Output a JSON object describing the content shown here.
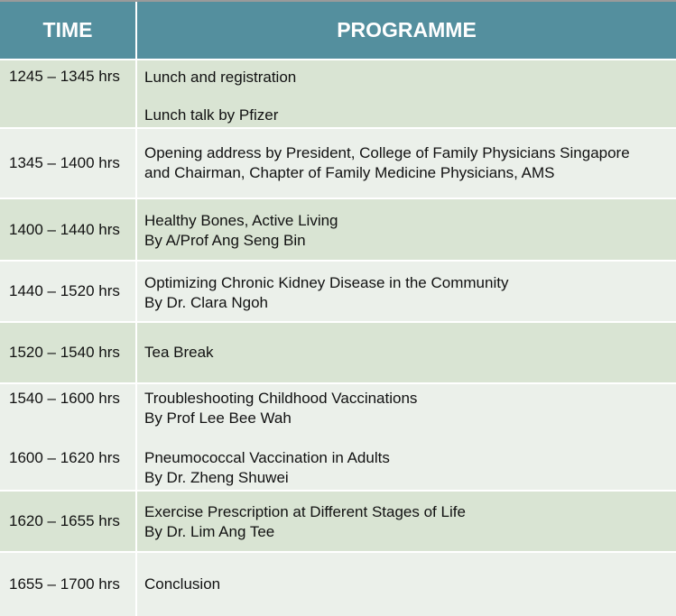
{
  "header": {
    "time": "TIME",
    "programme": "PROGRAMME"
  },
  "colors": {
    "header": "#548f9e",
    "row_dark": "#d9e4d3",
    "row_light": "#ebf0ea"
  },
  "rows": [
    {
      "time": "1245 – 1345 hrs",
      "lines": [
        "Lunch and registration",
        "Lunch talk by Pfizer"
      ]
    },
    {
      "time": "1345 – 1400 hrs",
      "lines": [
        "Opening address by President, College of Family Physicians Singapore",
        "and Chairman, Chapter of Family Medicine Physicians, AMS"
      ]
    },
    {
      "time": "1400 – 1440 hrs",
      "lines": [
        "Healthy Bones, Active Living",
        "By A/Prof Ang Seng Bin"
      ]
    },
    {
      "time": "1440 – 1520 hrs",
      "lines": [
        "Optimizing Chronic Kidney Disease in the Community",
        "By Dr. Clara Ngoh"
      ]
    },
    {
      "time": "1520 – 1540 hrs",
      "lines": [
        "Tea Break"
      ]
    },
    {
      "time": "1540 – 1600 hrs",
      "lines": [
        "Troubleshooting Childhood Vaccinations",
        "By Prof Lee Bee Wah"
      ]
    },
    {
      "time": "1600 – 1620 hrs",
      "lines": [
        "Pneumococcal Vaccination in Adults",
        "By Dr. Zheng Shuwei"
      ]
    },
    {
      "time": "1620 – 1655 hrs",
      "lines": [
        "Exercise Prescription at Different Stages of Life",
        "By Dr. Lim Ang Tee"
      ]
    },
    {
      "time": "1655 – 1700 hrs",
      "lines": [
        "Conclusion"
      ]
    }
  ]
}
